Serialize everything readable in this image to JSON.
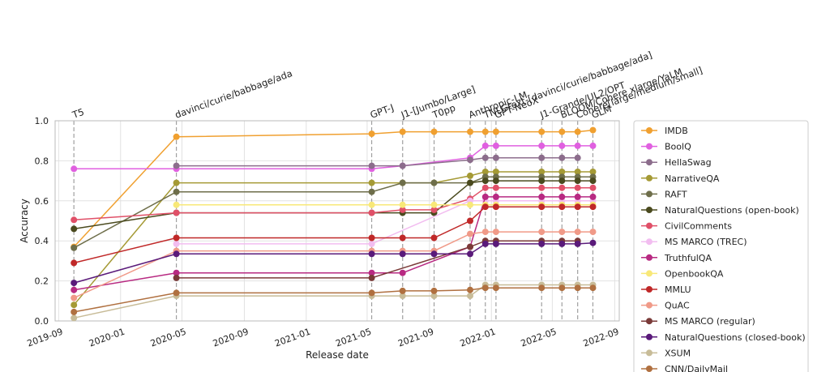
{
  "chart_data": {
    "type": "line",
    "xlabel": "Release date",
    "ylabel": "Accuracy",
    "ylim": [
      0,
      1.0
    ],
    "xlim": [
      "2019-08-25",
      "2022-09-10"
    ],
    "x_ticks": [
      "2019-09",
      "2020-01",
      "2020-05",
      "2020-09",
      "2021-01",
      "2021-05",
      "2021-09",
      "2022-01",
      "2022-05",
      "2022-09"
    ],
    "y_ticks": [
      "0.0",
      "0.2",
      "0.4",
      "0.6",
      "0.8",
      "1.0"
    ],
    "grid": true,
    "legend_position": "right",
    "x": [
      "2019-10-01",
      "2020-04-20",
      "2021-05-10",
      "2021-07-10",
      "2021-09-10",
      "2021-11-20",
      "2021-12-20",
      "2022-01-10",
      "2022-04-10",
      "2022-05-20",
      "2022-06-20",
      "2022-07-20"
    ],
    "release_labels": [
      {
        "date": "2019-10-01",
        "label": "T5"
      },
      {
        "date": "2020-04-20",
        "label": "davinci/curie/babbage/ada"
      },
      {
        "date": "2021-05-10",
        "label": "GPT-J"
      },
      {
        "date": "2021-07-10",
        "label": "J1-[Jumbo/Large]"
      },
      {
        "date": "2021-09-10",
        "label": "T0pp"
      },
      {
        "date": "2021-11-20",
        "label": "Anthropic-LM"
      },
      {
        "date": "2021-12-20",
        "label": "TNLGtext-[davinci/curie/babbage/ada]"
      },
      {
        "date": "2022-01-10",
        "label": "GPT-NeoX"
      },
      {
        "date": "2022-04-10",
        "label": "J1-Grande/UL2/OPT"
      },
      {
        "date": "2022-05-20",
        "label": "BLOOM/Cohere xlarge/YaLM"
      },
      {
        "date": "2022-06-20",
        "label": "Cohere[large/medium/small]"
      },
      {
        "date": "2022-07-20",
        "label": "GLM"
      }
    ],
    "series": [
      {
        "name": "IMDB",
        "color": "#f0a030",
        "values": [
          0.37,
          0.92,
          0.935,
          0.945,
          0.945,
          0.945,
          0.945,
          0.945,
          0.945,
          0.945,
          0.945,
          0.953
        ]
      },
      {
        "name": "BoolQ",
        "color": "#e060e0",
        "values": [
          0.76,
          0.76,
          0.76,
          0.775,
          null,
          0.815,
          0.875,
          0.875,
          0.875,
          0.875,
          0.875,
          0.875
        ]
      },
      {
        "name": "HellaSwag",
        "color": "#8c6d8c",
        "values": [
          null,
          0.775,
          0.775,
          0.775,
          null,
          0.805,
          0.815,
          0.815,
          0.815,
          0.815,
          0.815,
          null
        ]
      },
      {
        "name": "NarrativeQA",
        "color": "#a59a35",
        "values": [
          0.08,
          0.69,
          0.69,
          0.69,
          0.69,
          0.725,
          0.745,
          0.745,
          0.745,
          0.745,
          0.745,
          0.745
        ]
      },
      {
        "name": "RAFT",
        "color": "#6e6e4a",
        "values": [
          0.365,
          0.645,
          0.645,
          0.69,
          0.69,
          0.69,
          0.72,
          0.72,
          0.72,
          0.72,
          0.72,
          0.72
        ]
      },
      {
        "name": "NaturalQuestions (open-book)",
        "color": "#4a4a1e",
        "values": [
          0.46,
          0.54,
          0.54,
          0.54,
          0.54,
          0.69,
          0.7,
          0.7,
          0.7,
          0.7,
          0.7,
          0.7
        ]
      },
      {
        "name": "CivilComments",
        "color": "#e05068",
        "values": [
          0.505,
          0.54,
          0.54,
          0.555,
          0.555,
          0.61,
          0.665,
          0.665,
          0.665,
          0.665,
          0.665,
          0.665
        ]
      },
      {
        "name": "MS MARCO (TREC)",
        "color": "#f2bdf0",
        "values": [
          null,
          0.385,
          0.385,
          null,
          null,
          0.6,
          0.6,
          0.6,
          0.6,
          0.6,
          0.6,
          0.6
        ]
      },
      {
        "name": "TruthfulQA",
        "color": "#b82a82",
        "values": [
          0.155,
          0.24,
          0.24,
          0.24,
          null,
          0.37,
          0.62,
          0.62,
          0.62,
          0.62,
          0.62,
          0.62
        ]
      },
      {
        "name": "OpenbookQA",
        "color": "#f8e878",
        "values": [
          null,
          0.58,
          0.58,
          0.58,
          0.58,
          0.58,
          0.58,
          0.58,
          0.58,
          0.58,
          0.58,
          0.58
        ]
      },
      {
        "name": "MMLU",
        "color": "#c02828",
        "values": [
          0.29,
          0.415,
          0.415,
          0.415,
          0.415,
          0.5,
          0.57,
          0.57,
          0.57,
          0.57,
          0.57,
          0.57
        ]
      },
      {
        "name": "QuAC",
        "color": "#f09a88",
        "values": [
          0.115,
          0.35,
          0.35,
          0.35,
          0.35,
          0.435,
          0.445,
          0.445,
          0.445,
          0.445,
          0.445,
          0.445
        ]
      },
      {
        "name": "MS MARCO (regular)",
        "color": "#7a3a38",
        "values": [
          null,
          0.215,
          0.215,
          null,
          null,
          0.37,
          0.4,
          0.4,
          0.4,
          0.4,
          0.4,
          null
        ]
      },
      {
        "name": "NaturalQuestions (closed-book)",
        "color": "#5a1a7a",
        "values": [
          0.19,
          0.335,
          0.335,
          0.335,
          0.335,
          0.335,
          0.385,
          0.385,
          0.385,
          0.385,
          0.385,
          0.39
        ]
      },
      {
        "name": "XSUM",
        "color": "#c8bc98",
        "values": [
          0.015,
          0.125,
          0.125,
          0.125,
          0.125,
          0.125,
          0.18,
          0.18,
          0.18,
          0.18,
          0.18,
          0.18
        ]
      },
      {
        "name": "CNN/DailyMail",
        "color": "#b07040",
        "values": [
          0.045,
          0.14,
          0.14,
          0.15,
          0.15,
          0.155,
          0.165,
          0.165,
          0.165,
          0.165,
          0.165,
          0.165
        ]
      }
    ]
  }
}
